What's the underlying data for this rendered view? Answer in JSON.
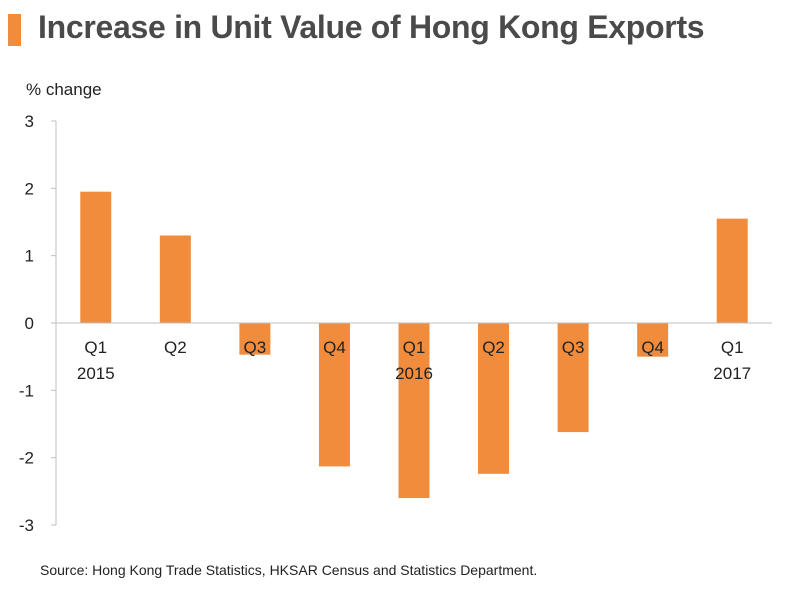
{
  "chart_data": {
    "type": "bar",
    "title": "Increase in Unit Value of Hong Kong Exports",
    "ylabel": "% change",
    "xlabel": "",
    "ylim": [
      -3,
      3
    ],
    "yticks": [
      3,
      2,
      1,
      0,
      -1,
      -2,
      -3
    ],
    "categories": [
      {
        "quarter": "Q1",
        "year": "2015"
      },
      {
        "quarter": "Q2",
        "year": ""
      },
      {
        "quarter": "Q3",
        "year": ""
      },
      {
        "quarter": "Q4",
        "year": ""
      },
      {
        "quarter": "Q1",
        "year": "2016"
      },
      {
        "quarter": "Q2",
        "year": ""
      },
      {
        "quarter": "Q3",
        "year": ""
      },
      {
        "quarter": "Q4",
        "year": ""
      },
      {
        "quarter": "Q1",
        "year": "2017"
      }
    ],
    "values": [
      1.95,
      1.3,
      -0.47,
      -2.13,
      -2.6,
      -2.24,
      -1.62,
      -0.5,
      1.55
    ],
    "bar_color": "#f08c3c",
    "source": "Source: Hong Kong Trade Statistics, HKSAR Census and Statistics Department."
  }
}
